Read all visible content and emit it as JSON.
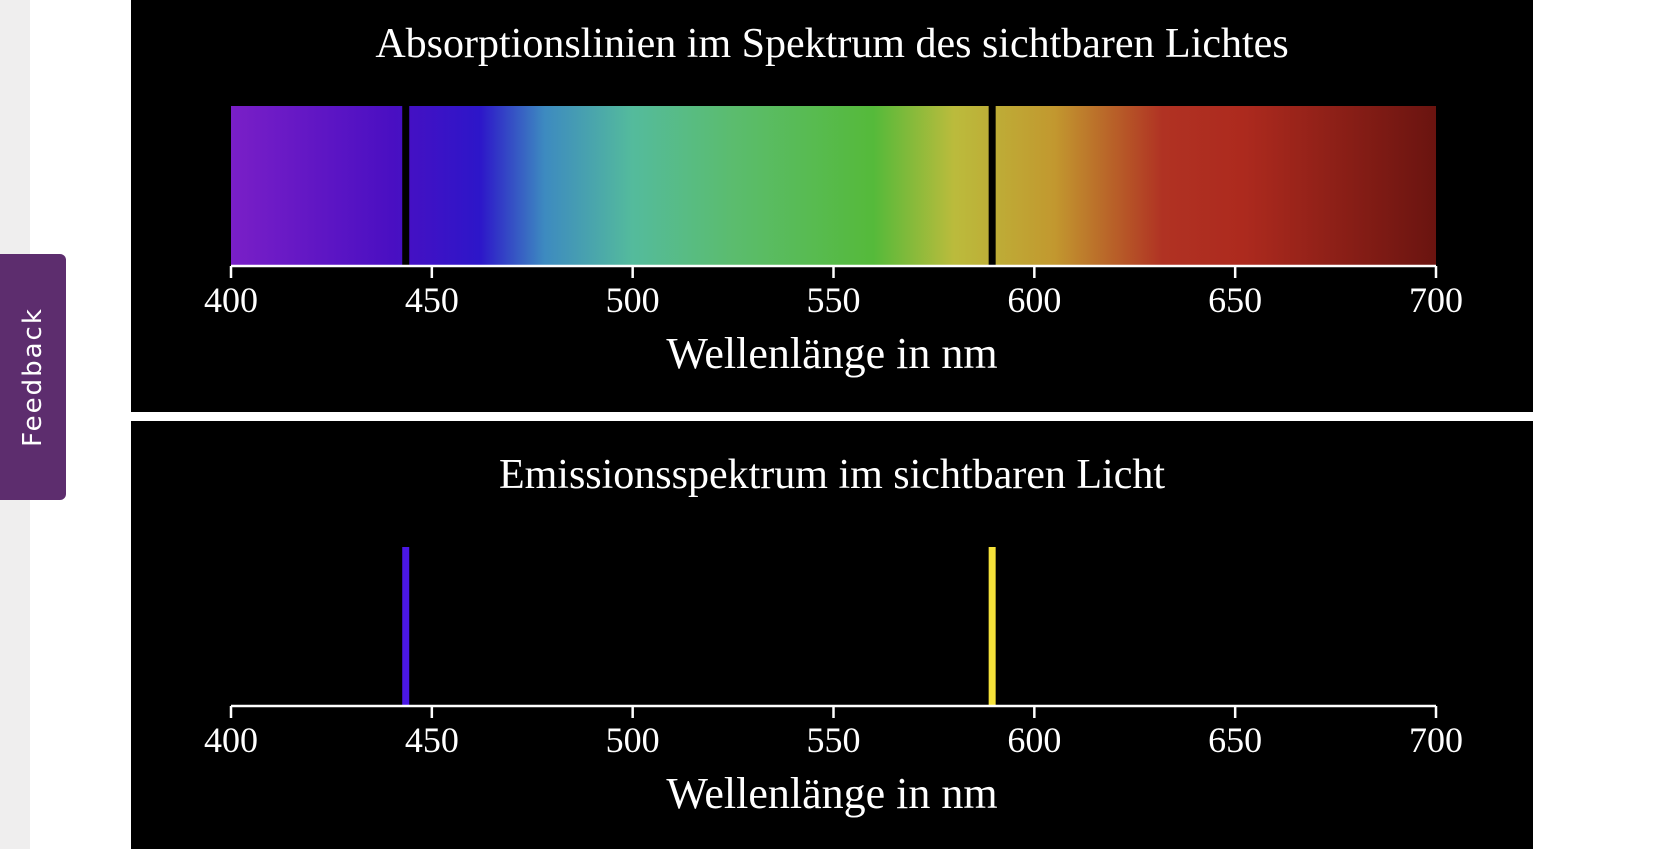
{
  "feedback": {
    "label": "Feedback",
    "background": "#5d2d6e"
  },
  "chart_data": [
    {
      "type": "spectrum",
      "kind": "absorption",
      "title": "Absorptionslinien im Spektrum des sichtbaren Lichtes",
      "xlabel": "Wellenlänge in nm",
      "xlim": [
        400,
        700
      ],
      "xticks": [
        400,
        450,
        500,
        550,
        600,
        650,
        700
      ],
      "background": "#000000",
      "gradient_stops": [
        {
          "nm": 400,
          "color": "#7a1fc7"
        },
        {
          "nm": 440,
          "color": "#4a0fc2"
        },
        {
          "nm": 462,
          "color": "#2d16c9"
        },
        {
          "nm": 478,
          "color": "#3d8ac0"
        },
        {
          "nm": 500,
          "color": "#54bb9c"
        },
        {
          "nm": 525,
          "color": "#5bbc6e"
        },
        {
          "nm": 560,
          "color": "#55ba3a"
        },
        {
          "nm": 580,
          "color": "#bbbb3c"
        },
        {
          "nm": 605,
          "color": "#c2982f"
        },
        {
          "nm": 632,
          "color": "#b03223"
        },
        {
          "nm": 652,
          "color": "#ad2a1e"
        },
        {
          "nm": 700,
          "color": "#6a1410"
        }
      ],
      "lines": [
        {
          "nm": 443.5,
          "color": "#000000"
        },
        {
          "nm": 589.5,
          "color": "#000000"
        }
      ]
    },
    {
      "type": "spectrum",
      "kind": "emission",
      "title": "Emissionsspektrum im sichtbaren Licht",
      "xlabel": "Wellenlänge in nm",
      "xlim": [
        400,
        700
      ],
      "xticks": [
        400,
        450,
        500,
        550,
        600,
        650,
        700
      ],
      "background": "#000000",
      "lines": [
        {
          "nm": 443.5,
          "color": "#4a17e6"
        },
        {
          "nm": 589.5,
          "color": "#f5e23a"
        }
      ]
    }
  ]
}
